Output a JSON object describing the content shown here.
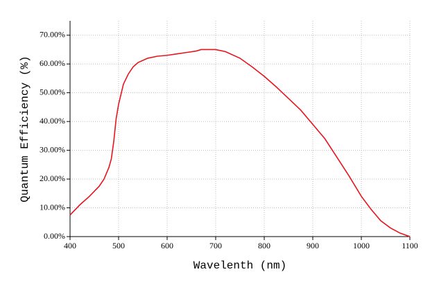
{
  "chart_data": {
    "type": "line",
    "x_label": "Wavelenth (nm)",
    "y_label": "Quantum Efficiency (%)",
    "xlim": [
      400,
      1100
    ],
    "xticks": [
      400,
      500,
      600,
      700,
      800,
      900,
      1000,
      1100
    ],
    "ylim": [
      0,
      75
    ],
    "yticks": [
      {
        "value": 0,
        "label": "0.00%"
      },
      {
        "value": 10,
        "label": "10.00%"
      },
      {
        "value": 20,
        "label": "20.00%"
      },
      {
        "value": 30,
        "label": "30.00%"
      },
      {
        "value": 40,
        "label": "40.00%"
      },
      {
        "value": 50,
        "label": "50.00%"
      },
      {
        "value": 60,
        "label": "60.00%"
      },
      {
        "value": 70,
        "label": "70.00%"
      }
    ],
    "grid": true,
    "x": [
      400,
      420,
      440,
      460,
      470,
      480,
      485,
      490,
      495,
      500,
      510,
      520,
      530,
      540,
      560,
      580,
      600,
      620,
      640,
      660,
      670,
      700,
      720,
      750,
      775,
      800,
      825,
      850,
      875,
      900,
      925,
      950,
      975,
      1000,
      1020,
      1040,
      1060,
      1080,
      1100
    ],
    "series": [
      {
        "color": "#e8141c",
        "values": [
          7.5,
          11,
          14,
          17.5,
          20,
          24,
          27,
          33,
          41,
          46,
          53,
          56.5,
          59,
          60.5,
          62,
          62.7,
          63,
          63.5,
          64,
          64.5,
          65,
          65,
          64.3,
          62,
          59,
          55.7,
          52,
          48,
          44,
          39,
          34,
          27.5,
          21,
          14,
          9.5,
          5.5,
          3,
          1.2,
          0
        ]
      }
    ]
  }
}
